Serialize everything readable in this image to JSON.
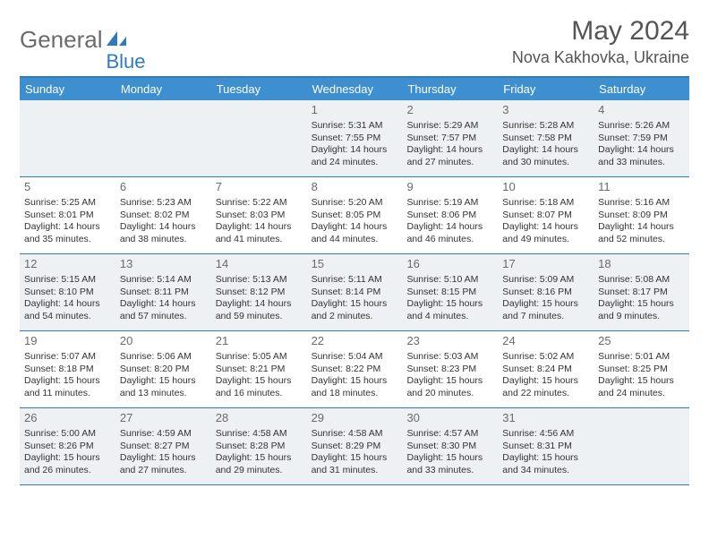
{
  "logo": {
    "part1": "General",
    "part2": "Blue",
    "color1": "#6b6b6b",
    "color2": "#2f7bbf"
  },
  "title": "May 2024",
  "location": "Nova Kakhovka, Ukraine",
  "colors": {
    "header_bg": "#3d8fcf",
    "header_text": "#ffffff",
    "border": "#2f7bbf",
    "alt_bg": "#eef1f3",
    "daynum": "#6a6a6a",
    "text": "#333333"
  },
  "day_names": [
    "Sunday",
    "Monday",
    "Tuesday",
    "Wednesday",
    "Thursday",
    "Friday",
    "Saturday"
  ],
  "weeks": [
    [
      {
        "n": "",
        "sr": "",
        "ss": "",
        "dl": ""
      },
      {
        "n": "",
        "sr": "",
        "ss": "",
        "dl": ""
      },
      {
        "n": "",
        "sr": "",
        "ss": "",
        "dl": ""
      },
      {
        "n": "1",
        "sr": "Sunrise: 5:31 AM",
        "ss": "Sunset: 7:55 PM",
        "dl": "Daylight: 14 hours and 24 minutes."
      },
      {
        "n": "2",
        "sr": "Sunrise: 5:29 AM",
        "ss": "Sunset: 7:57 PM",
        "dl": "Daylight: 14 hours and 27 minutes."
      },
      {
        "n": "3",
        "sr": "Sunrise: 5:28 AM",
        "ss": "Sunset: 7:58 PM",
        "dl": "Daylight: 14 hours and 30 minutes."
      },
      {
        "n": "4",
        "sr": "Sunrise: 5:26 AM",
        "ss": "Sunset: 7:59 PM",
        "dl": "Daylight: 14 hours and 33 minutes."
      }
    ],
    [
      {
        "n": "5",
        "sr": "Sunrise: 5:25 AM",
        "ss": "Sunset: 8:01 PM",
        "dl": "Daylight: 14 hours and 35 minutes."
      },
      {
        "n": "6",
        "sr": "Sunrise: 5:23 AM",
        "ss": "Sunset: 8:02 PM",
        "dl": "Daylight: 14 hours and 38 minutes."
      },
      {
        "n": "7",
        "sr": "Sunrise: 5:22 AM",
        "ss": "Sunset: 8:03 PM",
        "dl": "Daylight: 14 hours and 41 minutes."
      },
      {
        "n": "8",
        "sr": "Sunrise: 5:20 AM",
        "ss": "Sunset: 8:05 PM",
        "dl": "Daylight: 14 hours and 44 minutes."
      },
      {
        "n": "9",
        "sr": "Sunrise: 5:19 AM",
        "ss": "Sunset: 8:06 PM",
        "dl": "Daylight: 14 hours and 46 minutes."
      },
      {
        "n": "10",
        "sr": "Sunrise: 5:18 AM",
        "ss": "Sunset: 8:07 PM",
        "dl": "Daylight: 14 hours and 49 minutes."
      },
      {
        "n": "11",
        "sr": "Sunrise: 5:16 AM",
        "ss": "Sunset: 8:09 PM",
        "dl": "Daylight: 14 hours and 52 minutes."
      }
    ],
    [
      {
        "n": "12",
        "sr": "Sunrise: 5:15 AM",
        "ss": "Sunset: 8:10 PM",
        "dl": "Daylight: 14 hours and 54 minutes."
      },
      {
        "n": "13",
        "sr": "Sunrise: 5:14 AM",
        "ss": "Sunset: 8:11 PM",
        "dl": "Daylight: 14 hours and 57 minutes."
      },
      {
        "n": "14",
        "sr": "Sunrise: 5:13 AM",
        "ss": "Sunset: 8:12 PM",
        "dl": "Daylight: 14 hours and 59 minutes."
      },
      {
        "n": "15",
        "sr": "Sunrise: 5:11 AM",
        "ss": "Sunset: 8:14 PM",
        "dl": "Daylight: 15 hours and 2 minutes."
      },
      {
        "n": "16",
        "sr": "Sunrise: 5:10 AM",
        "ss": "Sunset: 8:15 PM",
        "dl": "Daylight: 15 hours and 4 minutes."
      },
      {
        "n": "17",
        "sr": "Sunrise: 5:09 AM",
        "ss": "Sunset: 8:16 PM",
        "dl": "Daylight: 15 hours and 7 minutes."
      },
      {
        "n": "18",
        "sr": "Sunrise: 5:08 AM",
        "ss": "Sunset: 8:17 PM",
        "dl": "Daylight: 15 hours and 9 minutes."
      }
    ],
    [
      {
        "n": "19",
        "sr": "Sunrise: 5:07 AM",
        "ss": "Sunset: 8:18 PM",
        "dl": "Daylight: 15 hours and 11 minutes."
      },
      {
        "n": "20",
        "sr": "Sunrise: 5:06 AM",
        "ss": "Sunset: 8:20 PM",
        "dl": "Daylight: 15 hours and 13 minutes."
      },
      {
        "n": "21",
        "sr": "Sunrise: 5:05 AM",
        "ss": "Sunset: 8:21 PM",
        "dl": "Daylight: 15 hours and 16 minutes."
      },
      {
        "n": "22",
        "sr": "Sunrise: 5:04 AM",
        "ss": "Sunset: 8:22 PM",
        "dl": "Daylight: 15 hours and 18 minutes."
      },
      {
        "n": "23",
        "sr": "Sunrise: 5:03 AM",
        "ss": "Sunset: 8:23 PM",
        "dl": "Daylight: 15 hours and 20 minutes."
      },
      {
        "n": "24",
        "sr": "Sunrise: 5:02 AM",
        "ss": "Sunset: 8:24 PM",
        "dl": "Daylight: 15 hours and 22 minutes."
      },
      {
        "n": "25",
        "sr": "Sunrise: 5:01 AM",
        "ss": "Sunset: 8:25 PM",
        "dl": "Daylight: 15 hours and 24 minutes."
      }
    ],
    [
      {
        "n": "26",
        "sr": "Sunrise: 5:00 AM",
        "ss": "Sunset: 8:26 PM",
        "dl": "Daylight: 15 hours and 26 minutes."
      },
      {
        "n": "27",
        "sr": "Sunrise: 4:59 AM",
        "ss": "Sunset: 8:27 PM",
        "dl": "Daylight: 15 hours and 27 minutes."
      },
      {
        "n": "28",
        "sr": "Sunrise: 4:58 AM",
        "ss": "Sunset: 8:28 PM",
        "dl": "Daylight: 15 hours and 29 minutes."
      },
      {
        "n": "29",
        "sr": "Sunrise: 4:58 AM",
        "ss": "Sunset: 8:29 PM",
        "dl": "Daylight: 15 hours and 31 minutes."
      },
      {
        "n": "30",
        "sr": "Sunrise: 4:57 AM",
        "ss": "Sunset: 8:30 PM",
        "dl": "Daylight: 15 hours and 33 minutes."
      },
      {
        "n": "31",
        "sr": "Sunrise: 4:56 AM",
        "ss": "Sunset: 8:31 PM",
        "dl": "Daylight: 15 hours and 34 minutes."
      },
      {
        "n": "",
        "sr": "",
        "ss": "",
        "dl": ""
      }
    ]
  ]
}
